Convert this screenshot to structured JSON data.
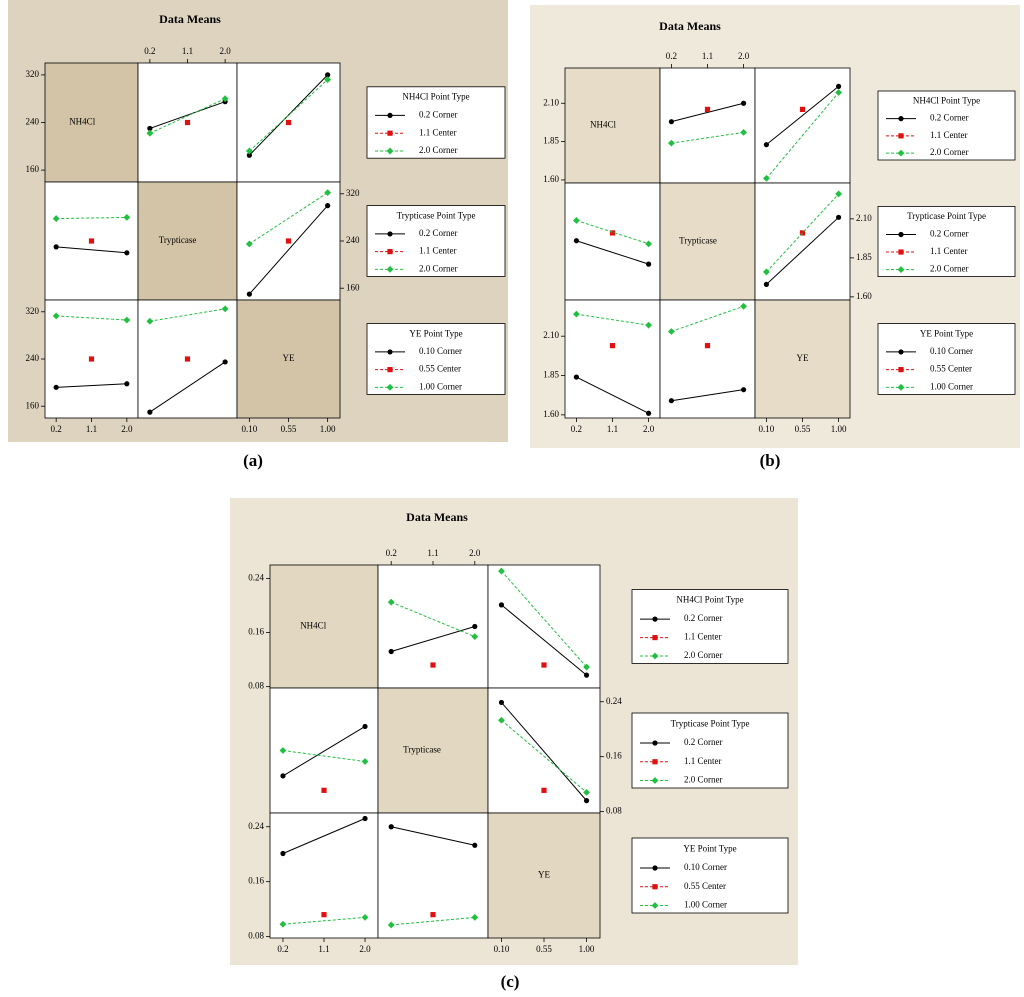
{
  "chart_data": [
    {
      "type": "interaction",
      "title": "Data Means",
      "label": "(a)",
      "colors": [
        "#000000",
        "#e01010",
        "#20c040"
      ],
      "ylim": [
        140,
        340
      ],
      "yticks": [
        160,
        240,
        320
      ],
      "factors": [
        {
          "name": "NH4Cl",
          "levels": [
            0.2,
            1.1,
            {
              "value": 2,
              "label": "2.0"
            }
          ],
          "legend": {
            "title": "NH4Cl  Point Type",
            "entries": [
              "0.2  Corner",
              "1.1  Center",
              "2.0  Corner"
            ]
          }
        },
        {
          "name": "Trypticase",
          "levels": [
            0.2,
            1.1,
            {
              "value": 2,
              "label": "2.0"
            }
          ],
          "legend": {
            "title": "Trypticase  Point Type",
            "entries": [
              "0.2  Corner",
              "1.1  Center",
              "2.0  Corner"
            ]
          }
        },
        {
          "name": "YE",
          "levels": [
            {
              "value": 0.1,
              "label": "0.10"
            },
            0.55,
            {
              "value": 1,
              "label": "1.00"
            }
          ],
          "legend": {
            "title": "YE  Point Type",
            "entries": [
              "0.10  Corner",
              "0.55  Center",
              "1.00  Corner"
            ]
          }
        }
      ],
      "panels": [
        [
          null,
          [
            [
              230,
              null,
              275
            ],
            [
              null,
              240,
              null
            ],
            [
              222,
              null,
              280
            ]
          ],
          [
            [
              185,
              null,
              320
            ],
            [
              null,
              240,
              null
            ],
            [
              192,
              null,
              312
            ]
          ]
        ],
        [
          [
            [
              230,
              null,
              220
            ],
            [
              null,
              240,
              null
            ],
            [
              278,
              null,
              280
            ]
          ],
          null,
          [
            [
              150,
              null,
              300
            ],
            [
              null,
              240,
              null
            ],
            [
              235,
              null,
              322
            ]
          ]
        ],
        [
          [
            [
              192,
              null,
              198
            ],
            [
              null,
              240,
              null
            ],
            [
              313,
              null,
              306
            ]
          ],
          [
            [
              150,
              null,
              235
            ],
            [
              null,
              240,
              null
            ],
            [
              304,
              null,
              325
            ]
          ],
          null
        ]
      ]
    },
    {
      "type": "interaction",
      "title": "Data Means",
      "label": "(b)",
      "colors": [
        "#000000",
        "#e01010",
        "#20c040"
      ],
      "ylim": [
        1.58,
        2.33
      ],
      "yticks": [
        {
          "value": 1.6,
          "label": "1.60"
        },
        1.85,
        {
          "value": 2.1,
          "label": "2.10"
        }
      ],
      "factors": [
        {
          "name": "NH4Cl",
          "levels": [
            0.2,
            1.1,
            {
              "value": 2,
              "label": "2.0"
            }
          ],
          "legend": {
            "title": "NH4Cl  Point Type",
            "entries": [
              "0.2  Corner",
              "1.1  Center",
              "2.0  Corner"
            ]
          }
        },
        {
          "name": "Trypticase",
          "levels": [
            0.2,
            1.1,
            {
              "value": 2,
              "label": "2.0"
            }
          ],
          "legend": {
            "title": "Trypticase  Point Type",
            "entries": [
              "0.2  Corner",
              "1.1  Center",
              "2.0  Corner"
            ]
          }
        },
        {
          "name": "YE",
          "levels": [
            {
              "value": 0.1,
              "label": "0.10"
            },
            0.55,
            {
              "value": 1,
              "label": "1.00"
            }
          ],
          "legend": {
            "title": "YE  Point Type",
            "entries": [
              "0.10  Corner",
              "0.55  Center",
              "1.00  Corner"
            ]
          }
        }
      ],
      "panels": [
        [
          null,
          [
            [
              1.98,
              null,
              2.1
            ],
            [
              null,
              2.06,
              null
            ],
            [
              1.84,
              null,
              1.91
            ]
          ],
          [
            [
              1.83,
              null,
              2.21
            ],
            [
              null,
              2.06,
              null
            ],
            [
              1.61,
              null,
              2.17
            ]
          ]
        ],
        [
          [
            [
              1.96,
              null,
              1.81
            ],
            [
              null,
              2.01,
              null
            ],
            [
              2.09,
              null,
              1.94
            ]
          ],
          null,
          [
            [
              1.68,
              null,
              2.11
            ],
            [
              null,
              2.01,
              null
            ],
            [
              1.76,
              null,
              2.26
            ]
          ]
        ],
        [
          [
            [
              1.84,
              null,
              1.61
            ],
            [
              null,
              2.04,
              null
            ],
            [
              2.24,
              null,
              2.17
            ]
          ],
          [
            [
              1.69,
              null,
              1.76
            ],
            [
              null,
              2.04,
              null
            ],
            [
              2.13,
              null,
              2.29
            ]
          ],
          null
        ]
      ]
    },
    {
      "type": "interaction",
      "title": "Data Means",
      "label": "(c)",
      "colors": [
        "#000000",
        "#e01010",
        "#20c040"
      ],
      "ylim": [
        0.078,
        0.26
      ],
      "yticks": [
        0.08,
        0.16,
        0.24
      ],
      "factors": [
        {
          "name": "NH4Cl",
          "levels": [
            0.2,
            1.1,
            {
              "value": 2,
              "label": "2.0"
            }
          ],
          "legend": {
            "title": "NH4Cl  Point Type",
            "entries": [
              "0.2  Corner",
              "1.1  Center",
              "2.0  Corner"
            ]
          }
        },
        {
          "name": "Trypticase",
          "levels": [
            0.2,
            1.1,
            {
              "value": 2,
              "label": "2.0"
            }
          ],
          "legend": {
            "title": "Trypticase  Point Type",
            "entries": [
              "0.2  Corner",
              "1.1  Center",
              "2.0  Corner"
            ]
          }
        },
        {
          "name": "YE",
          "levels": [
            {
              "value": 0.1,
              "label": "0.10"
            },
            0.55,
            {
              "value": 1,
              "label": "1.00"
            }
          ],
          "legend": {
            "title": "YE  Point Type",
            "entries": [
              "0.10  Corner",
              "0.55  Center",
              "1.00  Corner"
            ]
          }
        }
      ],
      "panels": [
        [
          null,
          [
            [
              0.132,
              null,
              0.169
            ],
            [
              null,
              0.112,
              null
            ],
            [
              0.205,
              null,
              0.154
            ]
          ],
          [
            [
              0.201,
              null,
              0.097
            ],
            [
              null,
              0.112,
              null
            ],
            [
              0.251,
              null,
              0.109
            ]
          ]
        ],
        [
          [
            [
              0.132,
              null,
              0.204
            ],
            [
              null,
              0.111,
              null
            ],
            [
              0.169,
              null,
              0.153
            ]
          ],
          null,
          [
            [
              0.239,
              null,
              0.096
            ],
            [
              null,
              0.111,
              null
            ],
            [
              0.213,
              null,
              0.108
            ]
          ]
        ],
        [
          [
            [
              0.201,
              null,
              0.252
            ],
            [
              null,
              0.112,
              null
            ],
            [
              0.098,
              null,
              0.108
            ]
          ],
          [
            [
              0.24,
              null,
              0.213
            ],
            [
              null,
              0.112,
              null
            ],
            [
              0.097,
              null,
              0.108
            ]
          ],
          null
        ]
      ]
    }
  ]
}
